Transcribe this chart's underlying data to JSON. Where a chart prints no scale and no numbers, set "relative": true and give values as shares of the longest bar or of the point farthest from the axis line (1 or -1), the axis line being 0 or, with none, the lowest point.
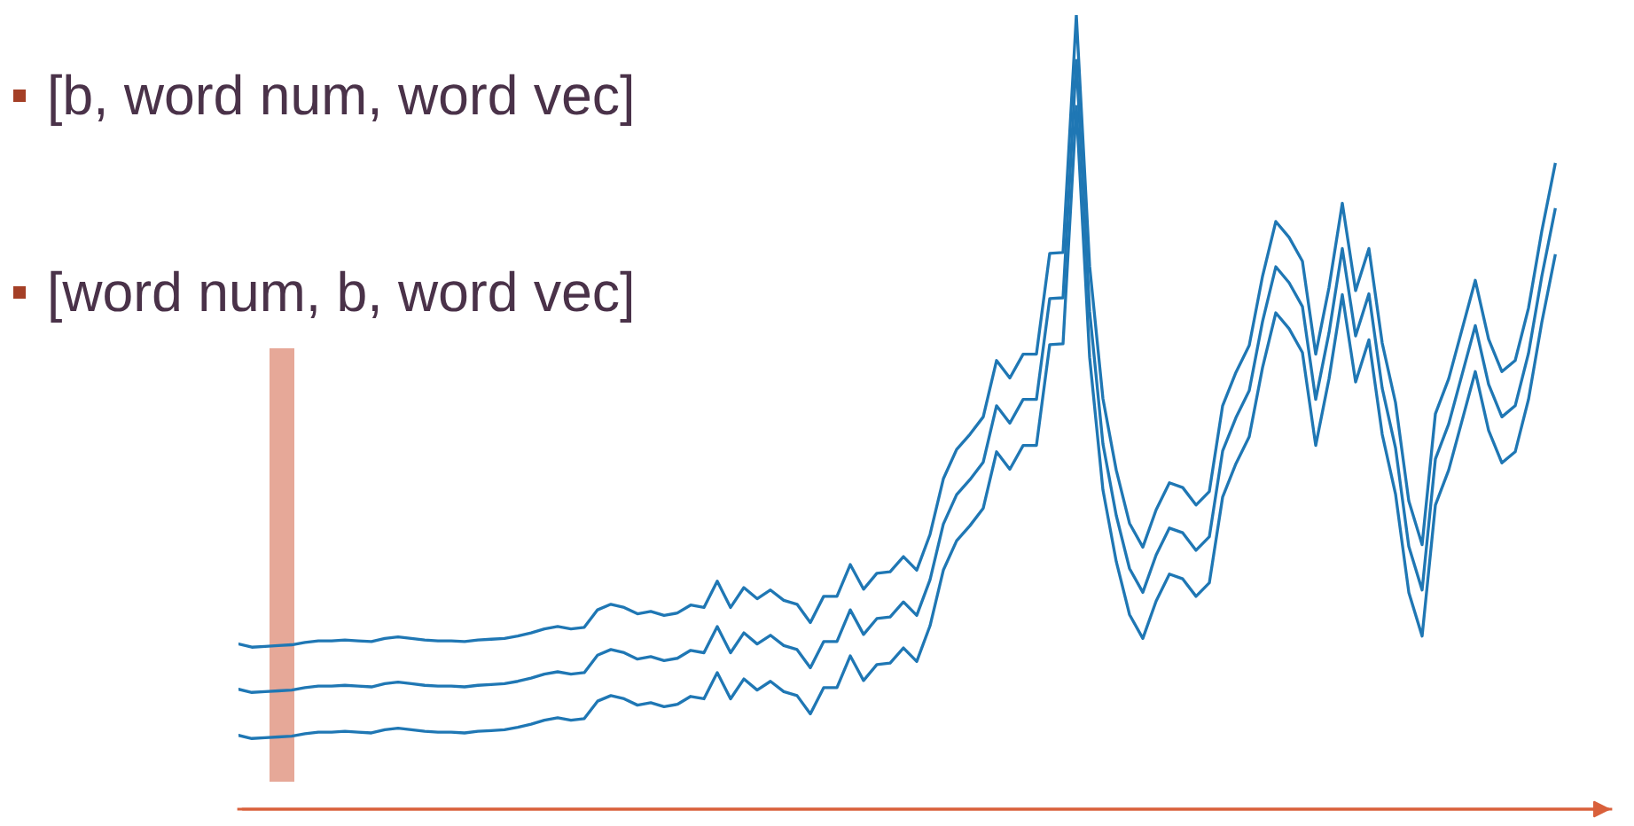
{
  "chart_data": {
    "type": "line",
    "relative": true,
    "categories": [
      null,
      null,
      null,
      null,
      null,
      null,
      null,
      null,
      null,
      null,
      null,
      null,
      null,
      null,
      null,
      null,
      null,
      null,
      null,
      null,
      null,
      null,
      null,
      null,
      null,
      null,
      null,
      null,
      null,
      null,
      null,
      null,
      null,
      null,
      null,
      null,
      null,
      null,
      null,
      null,
      null,
      null,
      null,
      null,
      null,
      null,
      null,
      null,
      null,
      null,
      null,
      null,
      null,
      null,
      null,
      null,
      null,
      null,
      null,
      null,
      null,
      null,
      null,
      null,
      null,
      null,
      null,
      null,
      null,
      null,
      null,
      null,
      null,
      null,
      null,
      null,
      null,
      null,
      null,
      null,
      null,
      null,
      null,
      null,
      null,
      null,
      null,
      null,
      null,
      null,
      null,
      null,
      null,
      null,
      null,
      null,
      null,
      null,
      null,
      null
    ],
    "series": [
      {
        "color": "#1f77b4",
        "values": [
          0.208,
          0.204,
          0.205,
          0.206,
          0.207,
          0.21,
          0.212,
          0.212,
          0.213,
          0.212,
          0.211,
          0.215,
          0.217,
          0.215,
          0.213,
          0.212,
          0.212,
          0.211,
          0.213,
          0.214,
          0.215,
          0.218,
          0.222,
          0.227,
          0.23,
          0.227,
          0.229,
          0.251,
          0.258,
          0.254,
          0.246,
          0.249,
          0.244,
          0.247,
          0.257,
          0.254,
          0.287,
          0.254,
          0.279,
          0.265,
          0.276,
          0.263,
          0.258,
          0.235,
          0.268,
          0.268,
          0.308,
          0.277,
          0.297,
          0.299,
          0.318,
          0.301,
          0.346,
          0.416,
          0.453,
          0.472,
          0.494,
          0.565,
          0.543,
          0.573,
          0.573,
          0.7,
          0.701,
          1,
          0.684,
          0.517,
          0.427,
          0.36,
          0.33,
          0.377,
          0.411,
          0.405,
          0.383,
          0.4,
          0.508,
          0.55,
          0.584,
          0.671,
          0.74,
          0.72,
          0.69,
          0.573,
          0.657,
          0.763,
          0.653,
          0.706,
          0.587,
          0.512,
          0.388,
          0.333,
          0.498,
          0.542,
          0.604,
          0.666,
          0.592,
          0.551,
          0.565,
          0.631,
          0.728,
          0.812
        ]
      },
      {
        "color": "#1f77b4",
        "values": [
          0.151,
          0.147,
          0.148,
          0.149,
          0.15,
          0.153,
          0.155,
          0.155,
          0.156,
          0.155,
          0.154,
          0.158,
          0.16,
          0.158,
          0.156,
          0.155,
          0.155,
          0.154,
          0.156,
          0.157,
          0.158,
          0.161,
          0.165,
          0.17,
          0.173,
          0.17,
          0.172,
          0.194,
          0.201,
          0.197,
          0.189,
          0.192,
          0.187,
          0.19,
          0.2,
          0.197,
          0.23,
          0.197,
          0.222,
          0.208,
          0.219,
          0.206,
          0.201,
          0.178,
          0.211,
          0.211,
          0.251,
          0.22,
          0.24,
          0.242,
          0.261,
          0.244,
          0.289,
          0.359,
          0.396,
          0.415,
          0.437,
          0.508,
          0.486,
          0.516,
          0.516,
          0.643,
          0.644,
          0.943,
          0.627,
          0.46,
          0.37,
          0.303,
          0.273,
          0.32,
          0.354,
          0.348,
          0.326,
          0.343,
          0.451,
          0.493,
          0.527,
          0.614,
          0.683,
          0.663,
          0.633,
          0.516,
          0.6,
          0.706,
          0.596,
          0.649,
          0.53,
          0.455,
          0.331,
          0.276,
          0.441,
          0.485,
          0.547,
          0.609,
          0.535,
          0.494,
          0.508,
          0.574,
          0.671,
          0.755
        ]
      },
      {
        "color": "#1f77b4",
        "values": [
          0.093,
          0.089,
          0.09,
          0.091,
          0.092,
          0.095,
          0.097,
          0.097,
          0.098,
          0.097,
          0.096,
          0.1,
          0.102,
          0.1,
          0.098,
          0.097,
          0.097,
          0.096,
          0.098,
          0.099,
          0.1,
          0.103,
          0.107,
          0.112,
          0.115,
          0.112,
          0.114,
          0.136,
          0.143,
          0.139,
          0.131,
          0.134,
          0.129,
          0.132,
          0.142,
          0.139,
          0.172,
          0.139,
          0.164,
          0.15,
          0.161,
          0.148,
          0.143,
          0.12,
          0.153,
          0.153,
          0.193,
          0.162,
          0.182,
          0.184,
          0.203,
          0.186,
          0.231,
          0.301,
          0.338,
          0.357,
          0.379,
          0.45,
          0.428,
          0.458,
          0.458,
          0.585,
          0.586,
          0.885,
          0.569,
          0.402,
          0.312,
          0.245,
          0.215,
          0.262,
          0.296,
          0.29,
          0.268,
          0.285,
          0.393,
          0.435,
          0.469,
          0.556,
          0.625,
          0.605,
          0.575,
          0.458,
          0.542,
          0.648,
          0.538,
          0.591,
          0.472,
          0.397,
          0.273,
          0.218,
          0.383,
          0.427,
          0.489,
          0.551,
          0.477,
          0.436,
          0.45,
          0.516,
          0.613,
          0.697
        ]
      }
    ],
    "annotations": [
      "[b, word num, word vec]",
      "[word num, b, word vec]"
    ]
  }
}
